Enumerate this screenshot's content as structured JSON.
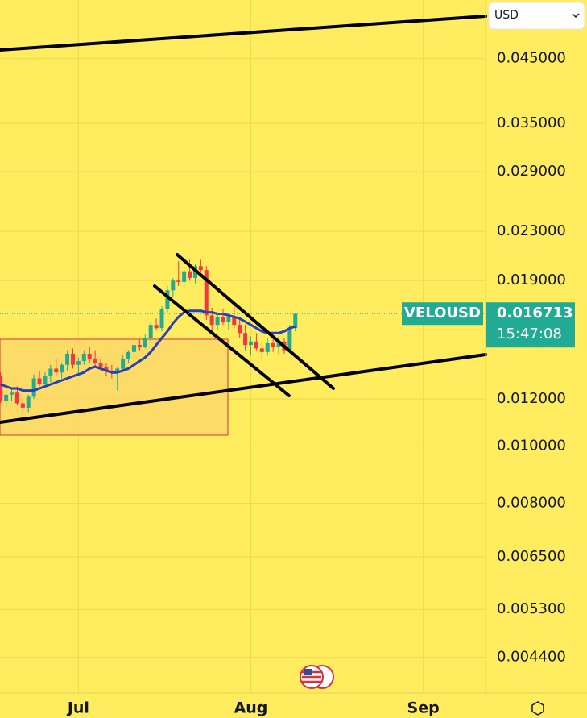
{
  "chart_data": {
    "type": "candlestick",
    "symbol": "VELOUSD",
    "currency": "USD",
    "last_price": 0.016713,
    "countdown": "15:47:08",
    "log_scale": true,
    "grid": true,
    "up_color": "#22ab94",
    "down_color": "#f23645",
    "x": [
      -14,
      -13,
      -12,
      -11,
      -10,
      -9,
      -8,
      -7,
      -6,
      -5,
      -4,
      -3,
      -2,
      -1,
      0,
      1,
      2,
      3,
      4,
      5,
      6,
      7,
      8,
      9,
      10,
      11,
      12,
      13,
      14,
      15,
      16,
      17,
      18,
      19,
      20,
      21,
      22,
      23,
      24,
      25,
      26,
      27,
      28,
      29,
      30,
      31,
      32,
      33,
      34,
      35,
      36,
      37,
      38,
      39
    ],
    "open": [
      0.0131,
      0.0119,
      0.0122,
      0.0123,
      0.0118,
      0.0116,
      0.0121,
      0.013,
      0.0127,
      0.0131,
      0.0135,
      0.0133,
      0.0137,
      0.0143,
      0.0137,
      0.0139,
      0.0143,
      0.014,
      0.0138,
      0.0136,
      0.0134,
      0.0133,
      0.0135,
      0.014,
      0.0144,
      0.0148,
      0.0147,
      0.0152,
      0.016,
      0.0158,
      0.017,
      0.0183,
      0.019,
      0.0189,
      0.0197,
      0.0192,
      0.0201,
      0.0198,
      0.0166,
      0.016,
      0.0165,
      0.0162,
      0.0165,
      0.016,
      0.0155,
      0.0148,
      0.015,
      0.0146,
      0.0144,
      0.0149,
      0.0147,
      0.015,
      0.0145,
      0.0158
    ],
    "high": [
      0.0133,
      0.0124,
      0.0125,
      0.0126,
      0.0121,
      0.0122,
      0.0132,
      0.0134,
      0.0133,
      0.0137,
      0.014,
      0.0138,
      0.0145,
      0.0146,
      0.0141,
      0.0145,
      0.0147,
      0.0145,
      0.014,
      0.0138,
      0.0137,
      0.0136,
      0.0142,
      0.0145,
      0.015,
      0.0151,
      0.0154,
      0.0162,
      0.0164,
      0.0172,
      0.0186,
      0.0192,
      0.0205,
      0.02,
      0.0206,
      0.0203,
      0.0206,
      0.0201,
      0.0171,
      0.0168,
      0.017,
      0.0167,
      0.0173,
      0.0165,
      0.016,
      0.0153,
      0.0155,
      0.015,
      0.0152,
      0.0153,
      0.0153,
      0.0152,
      0.016,
      0.0167
    ],
    "low": [
      0.0118,
      0.0116,
      0.0119,
      0.0117,
      0.0114,
      0.0114,
      0.012,
      0.0126,
      0.0125,
      0.0128,
      0.0131,
      0.013,
      0.0134,
      0.0135,
      0.0132,
      0.0137,
      0.0138,
      0.0136,
      0.0134,
      0.0131,
      0.013,
      0.0124,
      0.0133,
      0.0138,
      0.0142,
      0.0145,
      0.0146,
      0.015,
      0.0157,
      0.0156,
      0.0168,
      0.0178,
      0.0186,
      0.0185,
      0.019,
      0.0188,
      0.0196,
      0.0163,
      0.0155,
      0.0157,
      0.016,
      0.0157,
      0.0158,
      0.0152,
      0.0145,
      0.0142,
      0.0145,
      0.014,
      0.0142,
      0.0144,
      0.0143,
      0.0143,
      0.0144,
      0.0156
    ],
    "close": [
      0.0119,
      0.0122,
      0.0123,
      0.0118,
      0.0116,
      0.0121,
      0.013,
      0.0127,
      0.0131,
      0.0135,
      0.0133,
      0.0137,
      0.0143,
      0.0137,
      0.0139,
      0.0143,
      0.014,
      0.0138,
      0.0136,
      0.0134,
      0.0133,
      0.0135,
      0.014,
      0.0144,
      0.0148,
      0.0147,
      0.0152,
      0.016,
      0.0158,
      0.017,
      0.0183,
      0.019,
      0.0189,
      0.0197,
      0.0192,
      0.0201,
      0.0198,
      0.0166,
      0.016,
      0.0165,
      0.0162,
      0.0165,
      0.016,
      0.0155,
      0.0148,
      0.015,
      0.0146,
      0.0144,
      0.0149,
      0.0147,
      0.015,
      0.0145,
      0.0158,
      0.0167
    ],
    "ma": {
      "color": "#2540b8",
      "values": [
        0.0127,
        0.0126,
        0.0125,
        0.0125,
        0.0124,
        0.0124,
        0.0124,
        0.0125,
        0.0126,
        0.0127,
        0.0128,
        0.0129,
        0.013,
        0.0131,
        0.0132,
        0.0133,
        0.0135,
        0.0136,
        0.0135,
        0.0134,
        0.0133,
        0.0133,
        0.0134,
        0.0135,
        0.0137,
        0.0139,
        0.0141,
        0.0144,
        0.0148,
        0.0152,
        0.0156,
        0.0161,
        0.0165,
        0.0168,
        0.0169,
        0.0169,
        0.0169,
        0.0168,
        0.0168,
        0.0167,
        0.0167,
        0.0166,
        0.0165,
        0.0164,
        0.0162,
        0.016,
        0.0158,
        0.0156,
        0.0155,
        0.0155,
        0.0155,
        0.0156,
        0.0158,
        0.0159
      ]
    },
    "xlim": [
      -14.1,
      73.2
    ],
    "xticks": [
      {
        "value": 0,
        "label": "Jul"
      },
      {
        "value": 31,
        "label": "Aug"
      },
      {
        "value": 62,
        "label": "Sep"
      }
    ],
    "ylim": [
      0.00383,
      0.0565
    ],
    "yticks": [
      {
        "value": 0.045,
        "label": "0.045000"
      },
      {
        "value": 0.035,
        "label": "0.035000"
      },
      {
        "value": 0.029,
        "label": "0.029000"
      },
      {
        "value": 0.023,
        "label": "0.023000"
      },
      {
        "value": 0.019,
        "label": "0.019000"
      },
      {
        "value": 0.012,
        "label": "0.012000"
      },
      {
        "value": 0.01,
        "label": "0.010000"
      },
      {
        "value": 0.008,
        "label": "0.008000"
      },
      {
        "value": 0.0065,
        "label": "0.006500"
      },
      {
        "value": 0.0053,
        "label": "0.005300"
      },
      {
        "value": 0.0044,
        "label": "0.004400"
      }
    ]
  }
}
